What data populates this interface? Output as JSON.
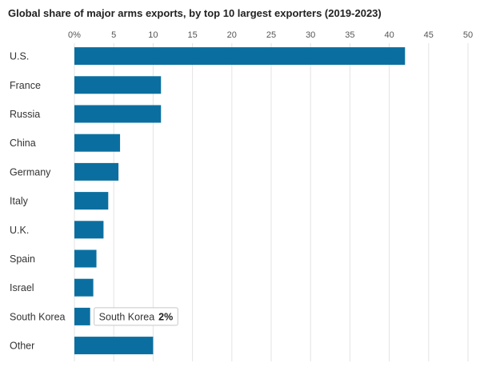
{
  "chart_data": {
    "type": "bar",
    "orientation": "horizontal",
    "title": "Global share of major arms exports, by top 10 largest exporters (2019-2023)",
    "categories": [
      "U.S.",
      "France",
      "Russia",
      "China",
      "Germany",
      "Italy",
      "U.K.",
      "Spain",
      "Israel",
      "South Korea",
      "Other"
    ],
    "values": [
      42,
      11,
      11,
      5.8,
      5.6,
      4.3,
      3.7,
      2.8,
      2.4,
      2,
      10
    ],
    "xlabel": "",
    "ylabel": "",
    "xlim": [
      0,
      50
    ],
    "xticks": [
      "0%",
      "5",
      "10",
      "15",
      "20",
      "25",
      "30",
      "35",
      "40",
      "45",
      "50"
    ],
    "xtick_values": [
      0,
      5,
      10,
      15,
      20,
      25,
      30,
      35,
      40,
      45,
      50
    ],
    "grid": true,
    "bar_color": "#0a6fa0",
    "tooltip": {
      "category": "South Korea",
      "label": "South Korea",
      "value_text": "2%"
    }
  }
}
